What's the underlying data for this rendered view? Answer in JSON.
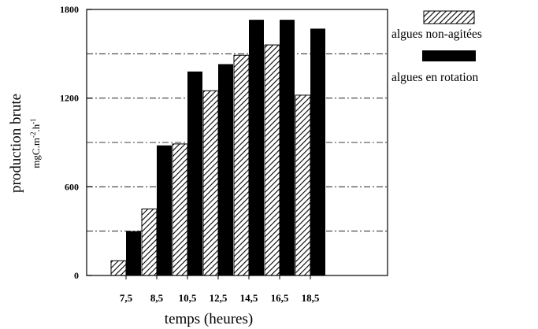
{
  "chart_data": {
    "type": "bar",
    "categories": [
      "7,5",
      "8,5",
      "10,5",
      "12,5",
      "14,5",
      "16,5",
      "18,5"
    ],
    "series": [
      {
        "name": "algues non-agitées",
        "values": [
          100,
          450,
          890,
          1250,
          1490,
          1560,
          1220
        ],
        "pattern": "hatched"
      },
      {
        "name": "algues en rotation",
        "values": [
          300,
          880,
          1380,
          1430,
          1730,
          1730,
          1670
        ],
        "pattern": "solid"
      }
    ],
    "xlabel": "temps (heures)",
    "ylabel": "production brute",
    "yunit": "mgC.m-2.h-1",
    "ylim": [
      0,
      1800
    ],
    "yticks": [
      0,
      600,
      1200,
      1800
    ],
    "grid": true,
    "legend_position": "top-right",
    "colors": {
      "solid": "#000000",
      "hatch": "#000000",
      "background": "#ffffff"
    }
  }
}
